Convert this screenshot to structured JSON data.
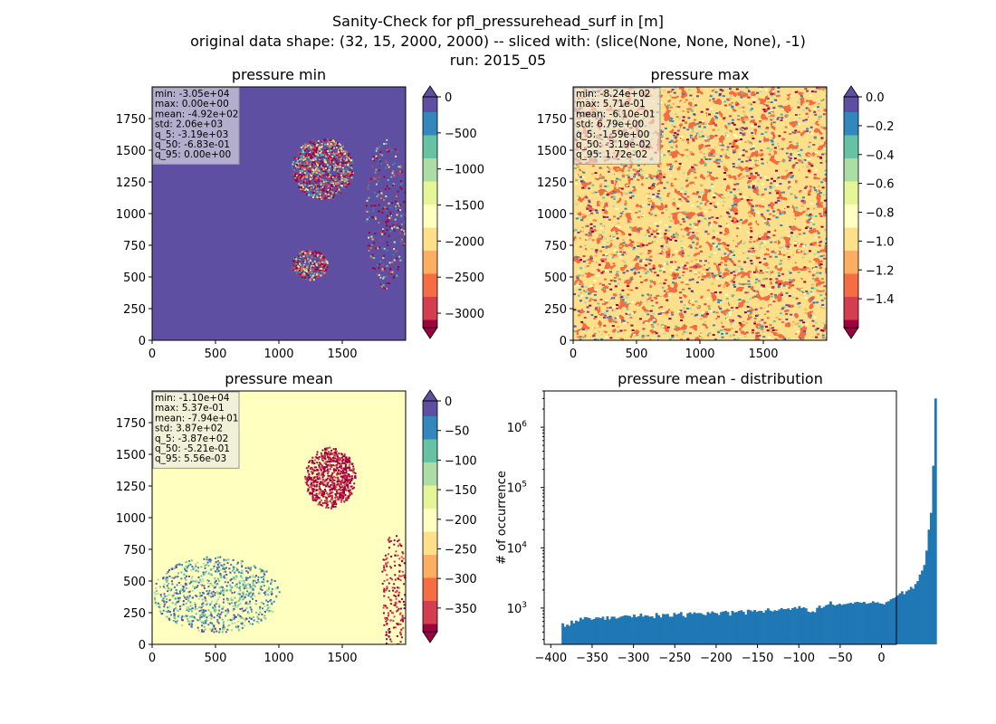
{
  "figure": {
    "title_lines": [
      "Sanity-Check for pfl_pressurehead_surf in [m]",
      "original data shape: (32, 15, 2000, 2000) -- sliced with: (slice(None, None, None), -1)",
      "run: 2015_05"
    ]
  },
  "chart_data": [
    {
      "type": "heatmap",
      "title": "pressure min",
      "xlim": [
        0,
        2000
      ],
      "ylim": [
        0,
        2000
      ],
      "x_ticks": [
        0,
        500,
        1000,
        1500
      ],
      "y_ticks": [
        0,
        250,
        500,
        750,
        1000,
        1250,
        1500,
        1750
      ],
      "colormap": "Spectral",
      "colorbar": {
        "vmin": -3200,
        "vmax": 0,
        "ticks": [
          0,
          -500,
          -1000,
          -1500,
          -2000,
          -2500,
          -3000
        ],
        "extend": "both"
      },
      "stats": [
        "min: -3.05e+04",
        "max: 0.00e+00",
        "mean: -4.92e+02",
        "std: 2.06e+03",
        "q_5: -3.19e+03",
        "q_50: -6.83e-01",
        "q_95: 0.00e+00"
      ]
    },
    {
      "type": "heatmap",
      "title": "pressure max",
      "xlim": [
        0,
        2000
      ],
      "ylim": [
        0,
        2000
      ],
      "x_ticks": [
        0,
        500,
        1000,
        1500
      ],
      "y_ticks": [
        0,
        250,
        500,
        750,
        1000,
        1250,
        1500,
        1750
      ],
      "colormap": "Spectral",
      "colorbar": {
        "vmin": -1.6,
        "vmax": 0.0,
        "ticks": [
          0.0,
          -0.2,
          -0.4,
          -0.6,
          -0.8,
          -1.0,
          -1.2,
          -1.4
        ],
        "tick_labels": [
          "0.0",
          "−0.2",
          "−0.4",
          "−0.6",
          "−0.8",
          "−1.0",
          "−1.2",
          "−1.4"
        ],
        "extend": "both"
      },
      "stats": [
        "min: -8.24e+02",
        "max: 5.71e-01",
        "mean: -6.10e-01",
        "std: 6.79e+00",
        "q_5: -1.59e+00",
        "q_50: -3.19e-02",
        "q_95: 1.72e-02"
      ]
    },
    {
      "type": "heatmap",
      "title": "pressure mean",
      "xlim": [
        0,
        2000
      ],
      "ylim": [
        0,
        2000
      ],
      "x_ticks": [
        0,
        500,
        1000,
        1500
      ],
      "y_ticks": [
        0,
        250,
        500,
        750,
        1000,
        1250,
        1500,
        1750
      ],
      "colormap": "Spectral",
      "colorbar": {
        "vmin": -390,
        "vmax": 0,
        "ticks": [
          0,
          -50,
          -100,
          -150,
          -200,
          -250,
          -300,
          -350
        ],
        "extend": "both"
      },
      "stats": [
        "min: -1.10e+04",
        "max: 5.37e-01",
        "mean: -7.94e+01",
        "std: 3.87e+02",
        "q_5: -3.87e+02",
        "q_50: -5.21e-01",
        "q_95: 5.56e-03"
      ]
    },
    {
      "type": "bar",
      "title": "pressure mean - distribution",
      "ylabel": "# of occurrence",
      "xlabel": "",
      "yscale": "log",
      "xlim": [
        -408,
        18
      ],
      "ylim": [
        250,
        4000000
      ],
      "x_ticks": [
        -400,
        -350,
        -300,
        -250,
        -200,
        -150,
        -100,
        -50,
        0
      ],
      "y_ticks": [
        1000,
        10000,
        100000,
        1000000
      ],
      "bar_color": "#1f77b4",
      "bin_start": -387,
      "bin_width": 2.7,
      "counts": [
        560,
        490,
        530,
        510,
        620,
        560,
        620,
        600,
        690,
        650,
        710,
        700,
        680,
        640,
        660,
        700,
        700,
        680,
        720,
        640,
        730,
        650,
        720,
        720,
        670,
        690,
        720,
        740,
        760,
        750,
        740,
        700,
        780,
        710,
        730,
        810,
        720,
        760,
        750,
        720,
        730,
        680,
        830,
        760,
        700,
        800,
        790,
        800,
        720,
        720,
        830,
        780,
        810,
        860,
        740,
        700,
        820,
        850,
        800,
        850,
        820,
        830,
        820,
        780,
        760,
        860,
        820,
        880,
        840,
        820,
        770,
        860,
        880,
        900,
        860,
        750,
        900,
        850,
        860,
        900,
        920,
        870,
        780,
        940,
        920,
        880,
        930,
        870,
        900,
        900,
        840,
        920,
        990,
        910,
        880,
        920,
        900,
        950,
        1000,
        960,
        960,
        990,
        930,
        1000,
        1040,
        980,
        1080,
        1000,
        1030,
        990,
        870,
        850,
        880,
        850,
        1010,
        1100,
        1000,
        1050,
        1120,
        1150,
        1290,
        1140,
        1100,
        1140,
        1180,
        1130,
        1160,
        1170,
        1200,
        1220,
        1180,
        1250,
        1270,
        1240,
        1230,
        1270,
        1180,
        1200,
        1220,
        1300,
        1230,
        1250,
        1200,
        1180,
        1150,
        1260,
        1300,
        1400,
        1450,
        1500,
        1620,
        1750,
        1900,
        1700,
        1900,
        2000,
        2250,
        2100,
        2500,
        2800,
        3600,
        4200,
        5200,
        9000,
        20000,
        38000,
        230000,
        3000000
      ]
    }
  ]
}
